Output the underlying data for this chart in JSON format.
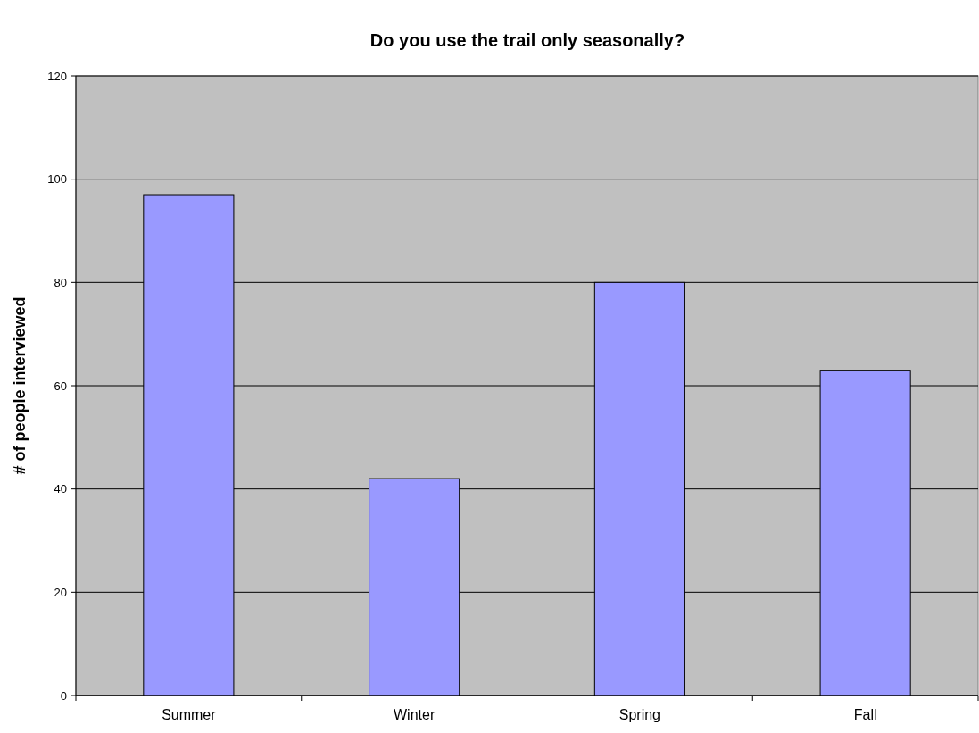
{
  "chart_data": {
    "type": "bar",
    "title": "Do you use the trail only seasonally?",
    "ylabel": "# of people interviewed",
    "categories": [
      "Summer",
      "Winter",
      "Spring",
      "Fall"
    ],
    "values": [
      97,
      42,
      80,
      63
    ],
    "color": "#9999ff",
    "ylim": [
      0,
      120
    ],
    "yticks": [
      0,
      20,
      40,
      60,
      80,
      100,
      120
    ],
    "grid": "y"
  }
}
